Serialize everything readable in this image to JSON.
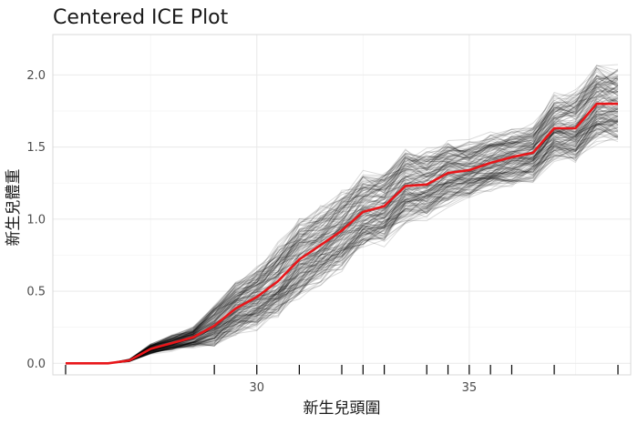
{
  "chart_data": {
    "type": "line",
    "title": "Centered ICE Plot",
    "xlabel": "新生兒頭圍",
    "ylabel": "新生兒體重",
    "xlim": [
      25.2,
      38.8
    ],
    "ylim": [
      -0.08,
      2.28
    ],
    "x_ticks": [
      30,
      35
    ],
    "x_tick_labels": [
      "30",
      "35"
    ],
    "y_ticks": [
      0.0,
      0.5,
      1.0,
      1.5,
      2.0
    ],
    "y_tick_labels": [
      "0.0",
      "0.5",
      "1.0",
      "1.5",
      "2.0"
    ],
    "grid": true,
    "grid_x_minor": [
      27.5,
      32.5,
      37.5
    ],
    "grid_y_minor": [
      0.25,
      0.75,
      1.25,
      1.75
    ],
    "colors": {
      "ice_lines": "#000000",
      "pdp_line": "#e8161a",
      "grid": "#ebebeb",
      "panel_border": "#d9d9d9",
      "rug": "#000000"
    },
    "x": [
      25.5,
      26.0,
      26.5,
      27.0,
      27.5,
      28.0,
      28.5,
      29.0,
      29.5,
      30.0,
      30.5,
      31.0,
      31.5,
      32.0,
      32.5,
      33.0,
      33.5,
      34.0,
      34.5,
      35.0,
      35.5,
      36.0,
      36.5,
      37.0,
      37.5,
      38.0,
      38.5
    ],
    "series": [
      {
        "values": [
          0.0,
          0.0,
          0.0,
          0.02,
          0.1,
          0.14,
          0.18,
          0.26,
          0.38,
          0.46,
          0.57,
          0.72,
          0.82,
          0.92,
          1.05,
          1.09,
          1.23,
          1.24,
          1.32,
          1.34,
          1.39,
          1.43,
          1.46,
          1.63,
          1.63,
          1.8,
          1.8
        ]
      }
    ],
    "ice_spread": {
      "values": [
        0.0,
        0.0,
        0.0,
        0.01,
        0.04,
        0.06,
        0.08,
        0.16,
        0.2,
        0.24,
        0.28,
        0.3,
        0.3,
        0.3,
        0.3,
        0.28,
        0.28,
        0.26,
        0.24,
        0.22,
        0.22,
        0.22,
        0.22,
        0.26,
        0.28,
        0.3,
        0.3
      ]
    },
    "rug_x": [
      25.5,
      29.0,
      30.0,
      31.0,
      32.0,
      32.5,
      33.0,
      34.0,
      34.5,
      35.0,
      35.5,
      36.0,
      37.0,
      38.5
    ]
  }
}
